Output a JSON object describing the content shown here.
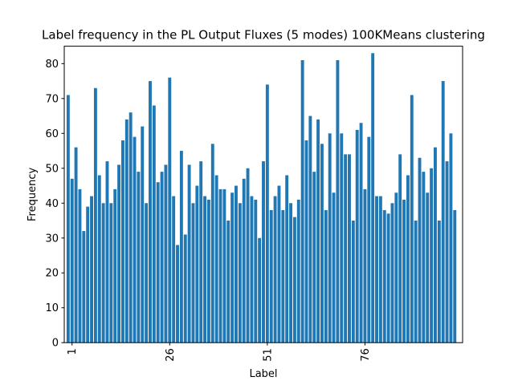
{
  "chart_data": {
    "type": "bar",
    "title": "Label frequency in the PL Output Fluxes (5 modes) 100KMeans clustering",
    "xlabel": "Label",
    "ylabel": "Frequency",
    "ylim": [
      0,
      85
    ],
    "xlim": [
      -1,
      101
    ],
    "yticks": [
      0,
      10,
      20,
      30,
      40,
      50,
      60,
      70,
      80
    ],
    "xticks": [
      1,
      26,
      51,
      76
    ],
    "xtick_rotation": 90,
    "color": "#1f77b4",
    "x": [
      0,
      1,
      2,
      3,
      4,
      5,
      6,
      7,
      8,
      9,
      10,
      11,
      12,
      13,
      14,
      15,
      16,
      17,
      18,
      19,
      20,
      21,
      22,
      23,
      24,
      25,
      26,
      27,
      28,
      29,
      30,
      31,
      32,
      33,
      34,
      35,
      36,
      37,
      38,
      39,
      40,
      41,
      42,
      43,
      44,
      45,
      46,
      47,
      48,
      49,
      50,
      51,
      52,
      53,
      54,
      55,
      56,
      57,
      58,
      59,
      60,
      61,
      62,
      63,
      64,
      65,
      66,
      67,
      68,
      69,
      70,
      71,
      72,
      73,
      74,
      75,
      76,
      77,
      78,
      79,
      80,
      81,
      82,
      83,
      84,
      85,
      86,
      87,
      88,
      89,
      90,
      91,
      92,
      93,
      94,
      95,
      96,
      97,
      98,
      99
    ],
    "values": [
      71,
      47,
      56,
      44,
      32,
      39,
      42,
      73,
      48,
      40,
      52,
      40,
      44,
      51,
      58,
      64,
      66,
      59,
      49,
      62,
      40,
      75,
      68,
      46,
      49,
      51,
      76,
      42,
      28,
      55,
      31,
      51,
      40,
      45,
      52,
      42,
      41,
      57,
      48,
      44,
      44,
      35,
      43,
      45,
      40,
      47,
      50,
      42,
      41,
      30,
      52,
      74,
      38,
      42,
      45,
      38,
      48,
      40,
      36,
      41,
      81,
      58,
      65,
      49,
      64,
      57,
      38,
      60,
      43,
      81,
      60,
      54,
      54,
      35,
      61,
      63,
      44,
      59,
      83,
      42,
      42,
      38,
      37,
      40,
      43,
      54,
      41,
      48,
      71,
      35,
      53,
      49,
      43,
      50,
      56,
      35,
      75,
      52,
      60,
      38
    ]
  }
}
